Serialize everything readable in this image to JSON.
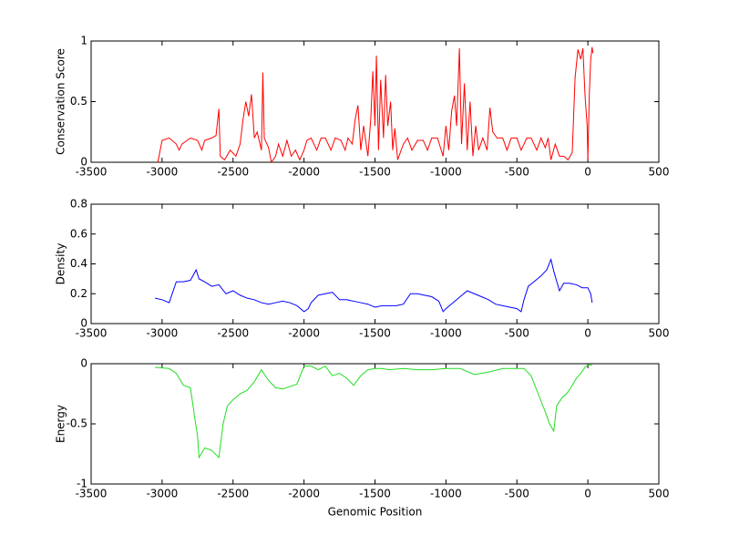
{
  "chart_data": [
    {
      "type": "line",
      "ylabel": "Conservation Score",
      "color": "#ff0000",
      "xlim": [
        -3500,
        500
      ],
      "xticks": [
        -3500,
        -3000,
        -2500,
        -2000,
        -1500,
        -1000,
        -500,
        0,
        500
      ],
      "ylim": [
        0,
        1
      ],
      "yticks": [
        0,
        0.5,
        1
      ],
      "x": [
        -3030,
        -3000,
        -2950,
        -2900,
        -2880,
        -2860,
        -2800,
        -2750,
        -2720,
        -2700,
        -2650,
        -2620,
        -2600,
        -2590,
        -2560,
        -2520,
        -2480,
        -2450,
        -2430,
        -2410,
        -2390,
        -2370,
        -2350,
        -2330,
        -2300,
        -2290,
        -2280,
        -2250,
        -2230,
        -2200,
        -2180,
        -2150,
        -2120,
        -2090,
        -2060,
        -2030,
        -2000,
        -1980,
        -1950,
        -1910,
        -1880,
        -1850,
        -1810,
        -1780,
        -1740,
        -1710,
        -1690,
        -1660,
        -1640,
        -1620,
        -1600,
        -1580,
        -1550,
        -1530,
        -1515,
        -1500,
        -1490,
        -1475,
        -1460,
        -1440,
        -1425,
        -1410,
        -1390,
        -1375,
        -1360,
        -1340,
        -1300,
        -1270,
        -1240,
        -1200,
        -1160,
        -1130,
        -1100,
        -1060,
        -1020,
        -1000,
        -980,
        -960,
        -940,
        -925,
        -905,
        -890,
        -870,
        -850,
        -830,
        -810,
        -790,
        -770,
        -740,
        -710,
        -690,
        -670,
        -640,
        -600,
        -570,
        -540,
        -500,
        -470,
        -430,
        -400,
        -360,
        -330,
        -300,
        -280,
        -260,
        -230,
        -200,
        -170,
        -140,
        -110,
        -90,
        -70,
        -50,
        -35,
        -20,
        -5,
        0,
        10,
        20,
        30,
        35
      ],
      "values": [
        0,
        0.18,
        0.2,
        0.15,
        0.1,
        0.15,
        0.2,
        0.18,
        0.1,
        0.18,
        0.2,
        0.22,
        0.44,
        0.05,
        0.02,
        0.1,
        0.05,
        0.15,
        0.35,
        0.5,
        0.38,
        0.56,
        0.2,
        0.25,
        0.1,
        0.74,
        0.2,
        0.12,
        0,
        0.05,
        0.15,
        0.05,
        0.18,
        0.05,
        0.1,
        0.02,
        0.1,
        0.18,
        0.2,
        0.1,
        0.2,
        0.2,
        0.1,
        0.2,
        0.18,
        0.1,
        0.2,
        0.15,
        0.35,
        0.47,
        0.1,
        0.3,
        0.05,
        0.35,
        0.75,
        0.3,
        0.88,
        0.1,
        0.68,
        0.2,
        0.72,
        0.3,
        0.5,
        0.1,
        0.28,
        0.02,
        0.15,
        0.2,
        0.1,
        0.18,
        0.18,
        0.1,
        0.2,
        0.2,
        0.05,
        0.3,
        0.1,
        0.42,
        0.55,
        0.3,
        0.94,
        0.15,
        0.65,
        0.1,
        0.5,
        0.05,
        0.3,
        0.1,
        0.2,
        0.1,
        0.45,
        0.25,
        0.2,
        0.2,
        0.1,
        0.2,
        0.2,
        0.1,
        0.2,
        0.2,
        0.1,
        0.2,
        0.12,
        0.2,
        0.02,
        0.15,
        0.05,
        0.05,
        0.02,
        0.08,
        0.7,
        0.93,
        0.85,
        0.94,
        0.55,
        0.3,
        0.02,
        0.55,
        0.85,
        0.95,
        0.9
      ]
    },
    {
      "type": "line",
      "ylabel": "Density",
      "color": "#0000ff",
      "xlim": [
        -3500,
        500
      ],
      "xticks": [
        -3500,
        -3000,
        -2500,
        -2000,
        -1500,
        -1000,
        -500,
        0,
        500
      ],
      "ylim": [
        0,
        0.8
      ],
      "yticks": [
        0,
        0.2,
        0.4,
        0.6,
        0.8
      ],
      "x": [
        -3050,
        -3000,
        -2950,
        -2900,
        -2850,
        -2800,
        -2760,
        -2740,
        -2700,
        -2650,
        -2600,
        -2550,
        -2500,
        -2450,
        -2400,
        -2350,
        -2300,
        -2250,
        -2200,
        -2150,
        -2100,
        -2050,
        -2000,
        -1970,
        -1950,
        -1900,
        -1850,
        -1800,
        -1750,
        -1700,
        -1650,
        -1600,
        -1550,
        -1500,
        -1450,
        -1400,
        -1350,
        -1300,
        -1250,
        -1200,
        -1150,
        -1100,
        -1050,
        -1020,
        -1000,
        -950,
        -900,
        -850,
        -800,
        -750,
        -700,
        -650,
        -600,
        -550,
        -500,
        -470,
        -450,
        -420,
        -380,
        -330,
        -290,
        -260,
        -240,
        -200,
        -170,
        -130,
        -80,
        -40,
        0,
        20,
        30
      ],
      "values": [
        0.17,
        0.16,
        0.14,
        0.28,
        0.28,
        0.29,
        0.36,
        0.3,
        0.28,
        0.25,
        0.26,
        0.2,
        0.22,
        0.19,
        0.17,
        0.16,
        0.14,
        0.13,
        0.14,
        0.15,
        0.14,
        0.12,
        0.08,
        0.1,
        0.14,
        0.19,
        0.2,
        0.21,
        0.16,
        0.16,
        0.15,
        0.14,
        0.13,
        0.11,
        0.12,
        0.12,
        0.12,
        0.13,
        0.2,
        0.2,
        0.19,
        0.18,
        0.15,
        0.08,
        0.1,
        0.14,
        0.18,
        0.22,
        0.2,
        0.18,
        0.16,
        0.13,
        0.12,
        0.11,
        0.1,
        0.08,
        0.16,
        0.25,
        0.28,
        0.32,
        0.36,
        0.43,
        0.35,
        0.22,
        0.27,
        0.27,
        0.26,
        0.24,
        0.24,
        0.2,
        0.14
      ]
    },
    {
      "type": "line",
      "ylabel": "Energy",
      "xlabel": "Genomic Position",
      "color": "#22dd22",
      "xlim": [
        -3500,
        500
      ],
      "xticks": [
        -3500,
        -3000,
        -2500,
        -2000,
        -1500,
        -1000,
        -500,
        0,
        500
      ],
      "ylim": [
        -1,
        0
      ],
      "yticks": [
        -1,
        -0.5,
        0
      ],
      "x": [
        -3050,
        -2950,
        -2900,
        -2850,
        -2800,
        -2770,
        -2750,
        -2740,
        -2700,
        -2650,
        -2600,
        -2570,
        -2540,
        -2500,
        -2450,
        -2400,
        -2350,
        -2300,
        -2250,
        -2200,
        -2150,
        -2100,
        -2050,
        -2000,
        -1950,
        -1900,
        -1850,
        -1800,
        -1750,
        -1700,
        -1650,
        -1600,
        -1550,
        -1500,
        -1450,
        -1400,
        -1300,
        -1200,
        -1100,
        -1000,
        -900,
        -800,
        -700,
        -600,
        -500,
        -450,
        -400,
        -350,
        -300,
        -270,
        -240,
        -220,
        -180,
        -150,
        -120,
        -80,
        -50,
        -20,
        0,
        30
      ],
      "values": [
        -0.03,
        -0.04,
        -0.08,
        -0.18,
        -0.2,
        -0.45,
        -0.6,
        -0.78,
        -0.7,
        -0.72,
        -0.78,
        -0.5,
        -0.35,
        -0.3,
        -0.25,
        -0.22,
        -0.15,
        -0.05,
        -0.14,
        -0.2,
        -0.21,
        -0.19,
        -0.17,
        -0.02,
        -0.02,
        -0.05,
        -0.02,
        -0.1,
        -0.08,
        -0.12,
        -0.18,
        -0.1,
        -0.05,
        -0.04,
        -0.04,
        -0.05,
        -0.04,
        -0.05,
        -0.05,
        -0.04,
        -0.04,
        -0.09,
        -0.07,
        -0.04,
        -0.04,
        -0.04,
        -0.1,
        -0.25,
        -0.4,
        -0.5,
        -0.56,
        -0.35,
        -0.28,
        -0.25,
        -0.2,
        -0.12,
        -0.08,
        -0.03,
        -0.01,
        -0.01
      ]
    }
  ]
}
